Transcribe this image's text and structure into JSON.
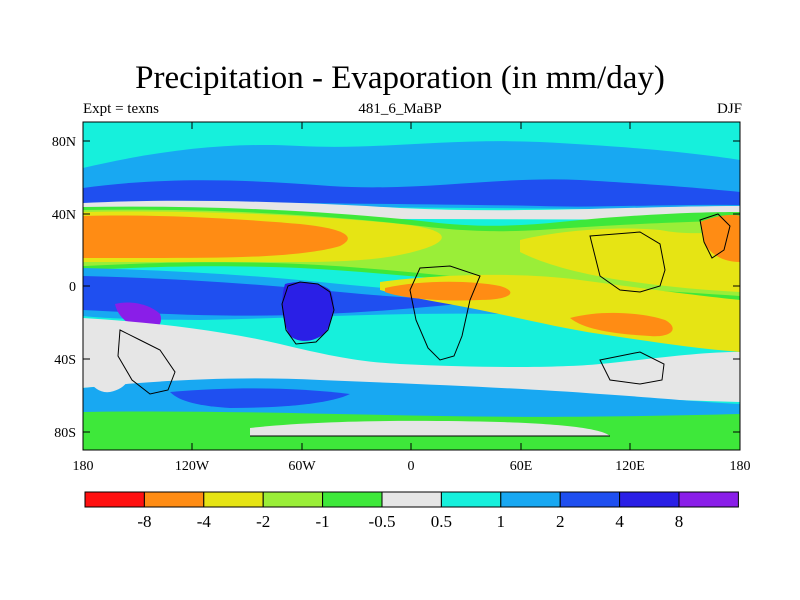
{
  "map": {
    "title": "Precipitation - Evaporation (in mm/day)",
    "left_label": "Expt = texns",
    "center_label": "481_6_MaBP",
    "right_label": "DJF",
    "lat_ticks": [
      "80N",
      "40N",
      "0",
      "40S",
      "80S"
    ],
    "lon_ticks": [
      "180",
      "120W",
      "60W",
      "0",
      "60E",
      "120E",
      "180"
    ]
  },
  "colorbar": {
    "colors": [
      "#ff1010",
      "#ff8c14",
      "#e6e414",
      "#9aee38",
      "#3ee83a",
      "#e6e6e6",
      "#16f0dc",
      "#18a8f2",
      "#1f4ff0",
      "#2a1fe6",
      "#8a1ee8"
    ],
    "labels": [
      "-8",
      "-4",
      "-2",
      "-1",
      "-0.5",
      "0.5",
      "1",
      "2",
      "4",
      "8"
    ]
  }
}
